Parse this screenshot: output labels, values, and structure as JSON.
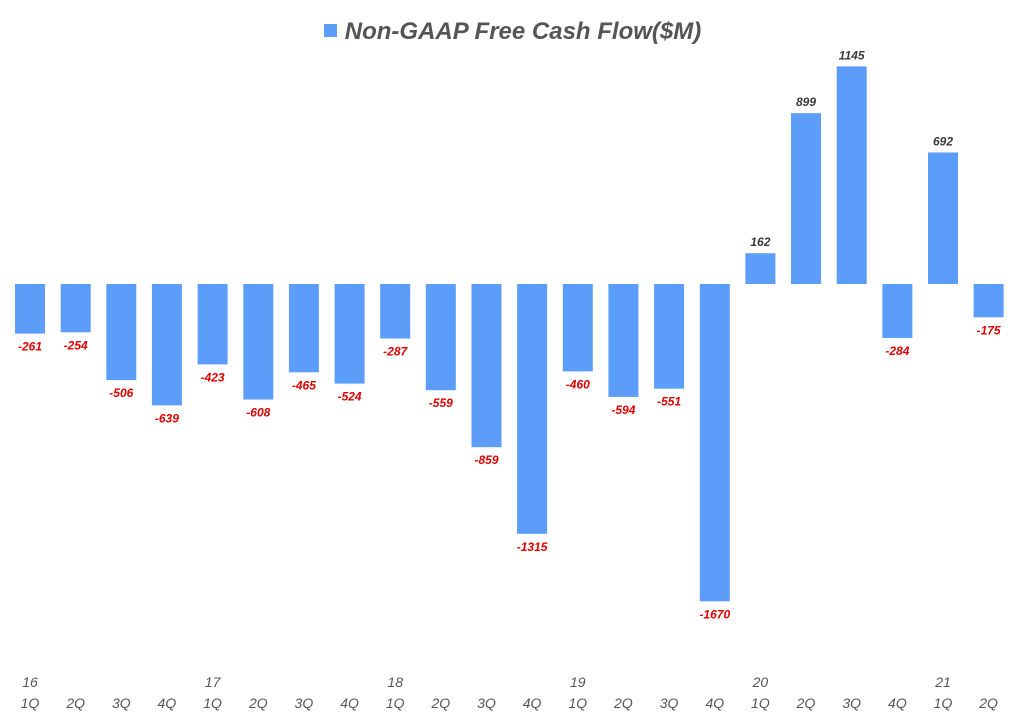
{
  "chart_data": {
    "type": "bar",
    "legend": "Non-GAAP Free Cash Flow($M)",
    "categories": [
      "16 1Q",
      "2Q",
      "3Q",
      "4Q",
      "17 1Q",
      "2Q",
      "3Q",
      "4Q",
      "18 1Q",
      "2Q",
      "3Q",
      "4Q",
      "19 1Q",
      "2Q",
      "3Q",
      "4Q",
      "20 1Q",
      "2Q",
      "3Q",
      "4Q",
      "21 1Q",
      "2Q"
    ],
    "year_labels": [
      "16",
      "",
      "",
      "",
      "17",
      "",
      "",
      "",
      "18",
      "",
      "",
      "",
      "19",
      "",
      "",
      "",
      "20",
      "",
      "",
      "",
      "21",
      ""
    ],
    "quarter_labels": [
      "1Q",
      "2Q",
      "3Q",
      "4Q",
      "1Q",
      "2Q",
      "3Q",
      "4Q",
      "1Q",
      "2Q",
      "3Q",
      "4Q",
      "1Q",
      "2Q",
      "3Q",
      "4Q",
      "1Q",
      "2Q",
      "3Q",
      "4Q",
      "1Q",
      "2Q"
    ],
    "values": [
      -261,
      -254,
      -506,
      -639,
      -423,
      -608,
      -465,
      -524,
      -287,
      -559,
      -859,
      -1315,
      -460,
      -594,
      -551,
      -1670,
      162,
      899,
      1145,
      -284,
      692,
      -175
    ],
    "value_labels": [
      "-261",
      "-254",
      "-506",
      "-639",
      "-423",
      "-608",
      "-465",
      "-524",
      "-287",
      "-559",
      "-859",
      "-1315",
      "-460",
      "-594",
      "-551",
      "-1670",
      "162",
      "899",
      "1145",
      "-284",
      "692",
      "-175"
    ],
    "ylim": [
      -1670,
      1145
    ],
    "colors": {
      "bar": "#5b9df9",
      "positive_label": "#3a3a3a",
      "negative_label": "#e00000"
    }
  }
}
